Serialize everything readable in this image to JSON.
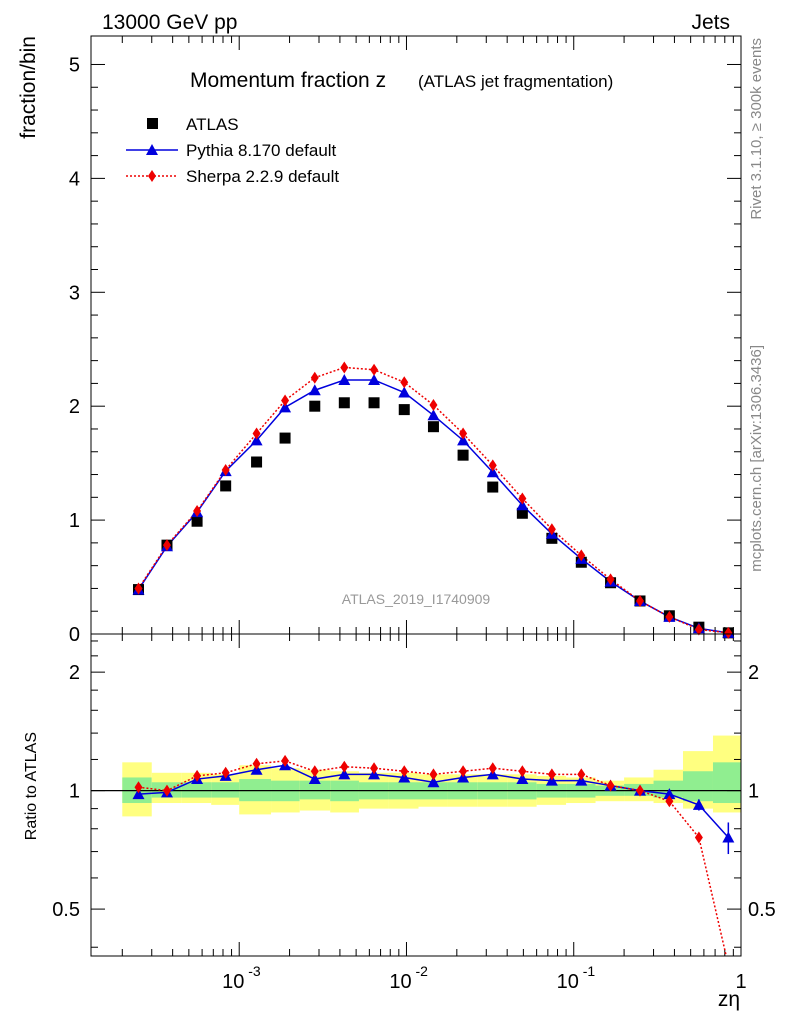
{
  "header": {
    "energy": "13000 GeV pp",
    "category": "Jets"
  },
  "side_labels": {
    "rivet": "Rivet 3.1.10, ≥ 300k events",
    "mcplots": "mcplots.cern.ch [arXiv:1306.3436]"
  },
  "colors": {
    "atlas": "#000000",
    "pythia": "#0000dd",
    "sherpa": "#ee0000",
    "band_inner": "#90ee90",
    "band_outer": "#ffff80"
  },
  "chart_data": [
    {
      "type": "scatter",
      "title": "Momentum fraction z",
      "title_suffix": "(ATLAS jet fragmentation)",
      "ylabel": "fraction/bin",
      "xlabel": "zη",
      "watermark": "ATLAS_2019_I1740909",
      "xscale": "log",
      "xlim": [
        0.00013,
        1.0
      ],
      "ylim": [
        0,
        5.25
      ],
      "yticks": [
        "0",
        "1",
        "2",
        "3",
        "4",
        "5"
      ],
      "xtick_labels": [
        "10",
        "10",
        "10",
        "1"
      ],
      "xtick_exps": [
        "-3",
        "-2",
        "-1",
        ""
      ],
      "x": [
        0.00025,
        0.00037,
        0.00056,
        0.00083,
        0.00127,
        0.00188,
        0.00283,
        0.00425,
        0.0064,
        0.0097,
        0.0145,
        0.0218,
        0.0328,
        0.0493,
        0.074,
        0.111,
        0.166,
        0.249,
        0.373,
        0.56,
        0.84
      ],
      "series": [
        {
          "name": "ATLAS",
          "marker": "square",
          "values": [
            0.39,
            0.78,
            0.99,
            1.3,
            1.51,
            1.72,
            2.0,
            2.03,
            2.03,
            1.97,
            1.82,
            1.57,
            1.29,
            1.06,
            0.84,
            0.63,
            0.45,
            0.29,
            0.16,
            0.06,
            0.01
          ]
        },
        {
          "name": "Pythia 8.170 default",
          "marker": "triangle",
          "values": [
            0.39,
            0.77,
            1.07,
            1.43,
            1.7,
            1.99,
            2.14,
            2.23,
            2.23,
            2.12,
            1.92,
            1.7,
            1.42,
            1.13,
            0.88,
            0.66,
            0.46,
            0.29,
            0.15,
            0.05,
            0.01
          ]
        },
        {
          "name": "Sherpa 2.2.9 default",
          "marker": "diamond",
          "values": [
            0.4,
            0.78,
            1.08,
            1.44,
            1.76,
            2.05,
            2.25,
            2.34,
            2.32,
            2.21,
            2.01,
            1.76,
            1.48,
            1.19,
            0.92,
            0.69,
            0.48,
            0.29,
            0.15,
            0.04,
            0.01
          ]
        }
      ]
    },
    {
      "type": "scatter",
      "ylabel": "Ratio to ATLAS",
      "yscale": "log",
      "ylim": [
        0.38,
        2.5
      ],
      "yticks": [
        "0.5",
        "1",
        "2"
      ],
      "x": [
        0.00025,
        0.00037,
        0.00056,
        0.00083,
        0.00127,
        0.00188,
        0.00283,
        0.00425,
        0.0064,
        0.0097,
        0.0145,
        0.0218,
        0.0328,
        0.0493,
        0.074,
        0.111,
        0.166,
        0.249,
        0.373,
        0.56,
        0.84
      ],
      "bin_edges": [
        0.0002,
        0.0003,
        0.00045,
        0.00068,
        0.001,
        0.00155,
        0.0023,
        0.0035,
        0.0052,
        0.0078,
        0.0118,
        0.0177,
        0.0265,
        0.04,
        0.06,
        0.09,
        0.135,
        0.2,
        0.3,
        0.45,
        0.68,
        1.0
      ],
      "band_outer": {
        "lo": [
          0.86,
          0.93,
          0.93,
          0.92,
          0.87,
          0.88,
          0.89,
          0.88,
          0.9,
          0.9,
          0.91,
          0.91,
          0.91,
          0.91,
          0.92,
          0.93,
          0.94,
          0.94,
          0.93,
          0.9,
          0.88
        ],
        "hi": [
          1.18,
          1.11,
          1.11,
          1.1,
          1.16,
          1.14,
          1.13,
          1.12,
          1.11,
          1.11,
          1.1,
          1.1,
          1.1,
          1.1,
          1.09,
          1.08,
          1.06,
          1.08,
          1.13,
          1.26,
          1.38
        ]
      },
      "band_inner": {
        "lo": [
          0.93,
          0.96,
          0.96,
          0.96,
          0.94,
          0.94,
          0.95,
          0.94,
          0.95,
          0.95,
          0.95,
          0.95,
          0.95,
          0.95,
          0.96,
          0.96,
          0.97,
          0.97,
          0.96,
          0.94,
          0.93
        ],
        "hi": [
          1.08,
          1.05,
          1.05,
          1.05,
          1.07,
          1.06,
          1.06,
          1.06,
          1.05,
          1.05,
          1.05,
          1.05,
          1.05,
          1.05,
          1.04,
          1.04,
          1.03,
          1.04,
          1.06,
          1.12,
          1.18
        ]
      },
      "series": [
        {
          "name": "Pythia 8.170 default",
          "values": [
            0.98,
            0.99,
            1.07,
            1.09,
            1.13,
            1.16,
            1.07,
            1.1,
            1.1,
            1.08,
            1.05,
            1.08,
            1.1,
            1.07,
            1.06,
            1.06,
            1.03,
            1.0,
            0.98,
            0.92,
            0.76
          ],
          "err": [
            0,
            0,
            0,
            0,
            0,
            0,
            0,
            0,
            0,
            0,
            0,
            0,
            0,
            0,
            0,
            0,
            0,
            0,
            0,
            0.03,
            0.07
          ]
        },
        {
          "name": "Sherpa 2.2.9 default",
          "values": [
            1.02,
            1.0,
            1.09,
            1.11,
            1.17,
            1.19,
            1.12,
            1.15,
            1.14,
            1.12,
            1.1,
            1.12,
            1.14,
            1.12,
            1.1,
            1.1,
            1.03,
            1.0,
            0.94,
            0.76,
            0.36
          ]
        }
      ]
    }
  ]
}
